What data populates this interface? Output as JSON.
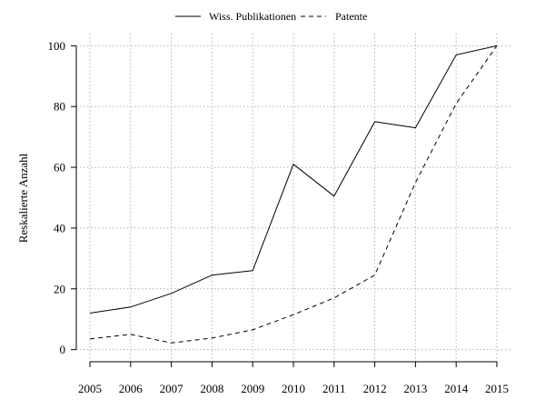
{
  "chart_data": {
    "type": "line",
    "x": [
      2005,
      2006,
      2007,
      2008,
      2009,
      2010,
      2011,
      2012,
      2013,
      2014,
      2015
    ],
    "series": [
      {
        "name": "Wiss. Publikationen",
        "style": "solid",
        "values": [
          12,
          14,
          18.5,
          24.5,
          26,
          61,
          50.5,
          75,
          73,
          97,
          100
        ]
      },
      {
        "name": "Patente",
        "style": "dashed",
        "values": [
          3.5,
          5,
          2.2,
          3.8,
          6.5,
          11.5,
          17,
          24.5,
          55,
          81,
          100
        ]
      }
    ],
    "ylabel": "Reskalierte Anzahl",
    "xlabel": "",
    "ylim": [
      -4,
      104
    ],
    "xlim": [
      2005,
      2015
    ],
    "yticks": [
      0,
      20,
      40,
      60,
      80,
      100
    ],
    "xticks": [
      2005,
      2006,
      2007,
      2008,
      2009,
      2010,
      2011,
      2012,
      2013,
      2014,
      2015
    ],
    "grid": true,
    "legend_position": "top-center",
    "colors": {
      "line": "#000000",
      "grid": "#b3b3b3"
    }
  }
}
